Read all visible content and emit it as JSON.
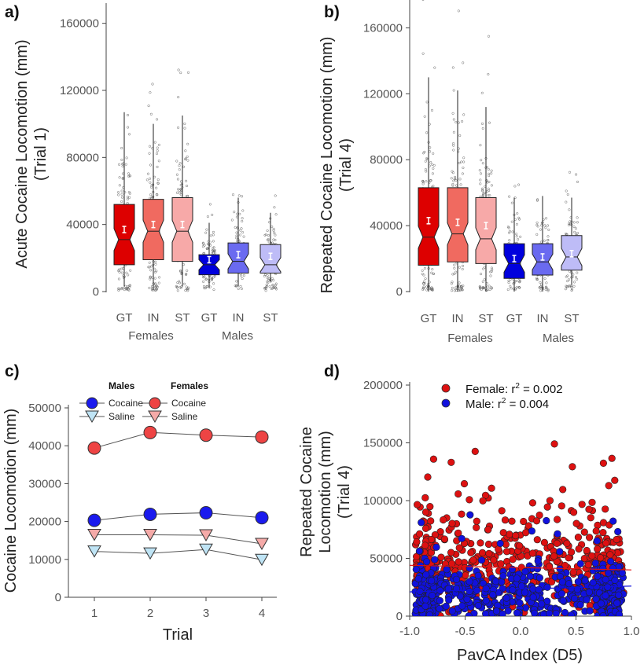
{
  "chart_data": [
    {
      "panel": "a)",
      "type": "box",
      "ylabel_line1": "Acute Cocaine Locomotion (mm)",
      "ylabel_line2": "(Trial 1)",
      "ylim": [
        0,
        165000
      ],
      "yticks": [
        0,
        40000,
        80000,
        120000,
        160000
      ],
      "categories": [
        "GT",
        "IN",
        "ST",
        "GT",
        "IN",
        "ST"
      ],
      "groups": [
        {
          "label": "Females"
        },
        {
          "label": "Males"
        }
      ],
      "boxes": [
        {
          "cat": "GT",
          "sex": "female",
          "color": "#dd0000",
          "q1": 16000,
          "median": 31000,
          "q3": 52000,
          "wlo": 3000,
          "whi": 107000,
          "mean": 37000
        },
        {
          "cat": "IN",
          "sex": "female",
          "color": "#f06a60",
          "q1": 19000,
          "median": 36000,
          "q3": 55000,
          "wlo": 1000,
          "whi": 100000,
          "mean": 40000
        },
        {
          "cat": "ST",
          "sex": "female",
          "color": "#f7a9a8",
          "q1": 18000,
          "median": 36000,
          "q3": 56000,
          "wlo": 3000,
          "whi": 105000,
          "mean": 40000
        },
        {
          "cat": "GT",
          "sex": "male",
          "color": "#0000dd",
          "q1": 10000,
          "median": 16000,
          "q3": 22000,
          "wlo": 2000,
          "whi": 41000,
          "mean": 19000
        },
        {
          "cat": "IN",
          "sex": "male",
          "color": "#6a6af0",
          "q1": 11000,
          "median": 18000,
          "q3": 29000,
          "wlo": 3000,
          "whi": 56000,
          "mean": 22000
        },
        {
          "cat": "ST",
          "sex": "male",
          "color": "#bebcf7",
          "q1": 11000,
          "median": 16000,
          "q3": 28000,
          "wlo": 6000,
          "whi": 47000,
          "mean": 21000
        }
      ]
    },
    {
      "panel": "b)",
      "type": "box",
      "ylabel_line1": "Repeated Cocaine Locomotion (mm)",
      "ylabel_line2": "(Trial 4)",
      "ylim": [
        0,
        175000
      ],
      "yticks": [
        0,
        40000,
        80000,
        120000,
        160000
      ],
      "categories": [
        "GT",
        "IN",
        "ST",
        "GT",
        "IN",
        "ST"
      ],
      "groups": [
        {
          "label": "Females"
        },
        {
          "label": "Males"
        }
      ],
      "boxes": [
        {
          "cat": "GT",
          "sex": "female",
          "color": "#dd0000",
          "q1": 16000,
          "median": 33000,
          "q3": 63000,
          "wlo": 0,
          "whi": 130000,
          "mean": 43000
        },
        {
          "cat": "IN",
          "sex": "female",
          "color": "#f06a60",
          "q1": 18000,
          "median": 35000,
          "q3": 63000,
          "wlo": 0,
          "whi": 122000,
          "mean": 42000
        },
        {
          "cat": "ST",
          "sex": "female",
          "color": "#f7a9a8",
          "q1": 17000,
          "median": 32000,
          "q3": 57000,
          "wlo": 0,
          "whi": 112000,
          "mean": 40000
        },
        {
          "cat": "GT",
          "sex": "male",
          "color": "#0000dd",
          "q1": 8000,
          "median": 17000,
          "q3": 29000,
          "wlo": 0,
          "whi": 57000,
          "mean": 20000
        },
        {
          "cat": "IN",
          "sex": "male",
          "color": "#6a6af0",
          "q1": 10000,
          "median": 18000,
          "q3": 29000,
          "wlo": 0,
          "whi": 58000,
          "mean": 21000
        },
        {
          "cat": "ST",
          "sex": "male",
          "color": "#bebcf7",
          "q1": 13000,
          "median": 21000,
          "q3": 34000,
          "wlo": 4000,
          "whi": 57000,
          "mean": 23000
        }
      ]
    },
    {
      "panel": "c)",
      "type": "line",
      "xlabel": "Trial",
      "ylabel": "Cocaine Locomotion (mm)",
      "x": [
        1,
        2,
        3,
        4
      ],
      "ylim": [
        0,
        50000
      ],
      "yticks": [
        0,
        10000,
        20000,
        30000,
        40000,
        50000
      ],
      "legend": {
        "males_title": "Males",
        "females_title": "Females",
        "cocaine": "Cocaine",
        "saline": "Saline",
        "placement": "top-left"
      },
      "series": [
        {
          "name": "Cocaine",
          "sex": "female",
          "marker": "circle",
          "color": "#ee4444",
          "values": [
            39400,
            43500,
            42800,
            42300
          ]
        },
        {
          "name": "Cocaine",
          "sex": "male",
          "marker": "circle",
          "color": "#1a1aee",
          "values": [
            20300,
            21900,
            22300,
            21000
          ]
        },
        {
          "name": "Saline",
          "sex": "female",
          "marker": "triangle-down",
          "color": "#f5aaa8",
          "values": [
            16500,
            16500,
            16400,
            14100
          ]
        },
        {
          "name": "Saline",
          "sex": "male",
          "marker": "triangle-down",
          "color": "#bfe4f5",
          "values": [
            12100,
            11600,
            12600,
            9900
          ]
        }
      ]
    },
    {
      "panel": "d)",
      "type": "scatter",
      "xlabel": "PavCA Index (D5)",
      "ylabel_line1": "Repeated Cocaine",
      "ylabel_line2": "Locomotion (mm)",
      "ylabel_line3": "(Trial 4)",
      "xlim": [
        -1.0,
        1.0
      ],
      "ylim": [
        0,
        200000
      ],
      "xticks": [
        -1.0,
        -0.5,
        0.0,
        0.5,
        1.0
      ],
      "xtick_labels": [
        "-1.0",
        "-0.5",
        "0.0",
        "0.5",
        "1.0"
      ],
      "yticks": [
        0,
        50000,
        100000,
        150000,
        200000
      ],
      "legend": {
        "placement": "top-left"
      },
      "series": [
        {
          "sex": "female",
          "color": "#dd1111",
          "legend_label": "Female: r",
          "legend_sup": "2",
          "legend_value": " = 0.002",
          "fit": {
            "x": [
              -1.0,
              1.0
            ],
            "y": [
              44000,
              40000
            ]
          }
        },
        {
          "sex": "male",
          "color": "#1111dd",
          "legend_label": "Male: r",
          "legend_sup": "2",
          "legend_value": " = 0.004",
          "fit": {
            "x": [
              -1.0,
              1.0
            ],
            "y": [
              21000,
              26000
            ]
          }
        }
      ]
    }
  ]
}
